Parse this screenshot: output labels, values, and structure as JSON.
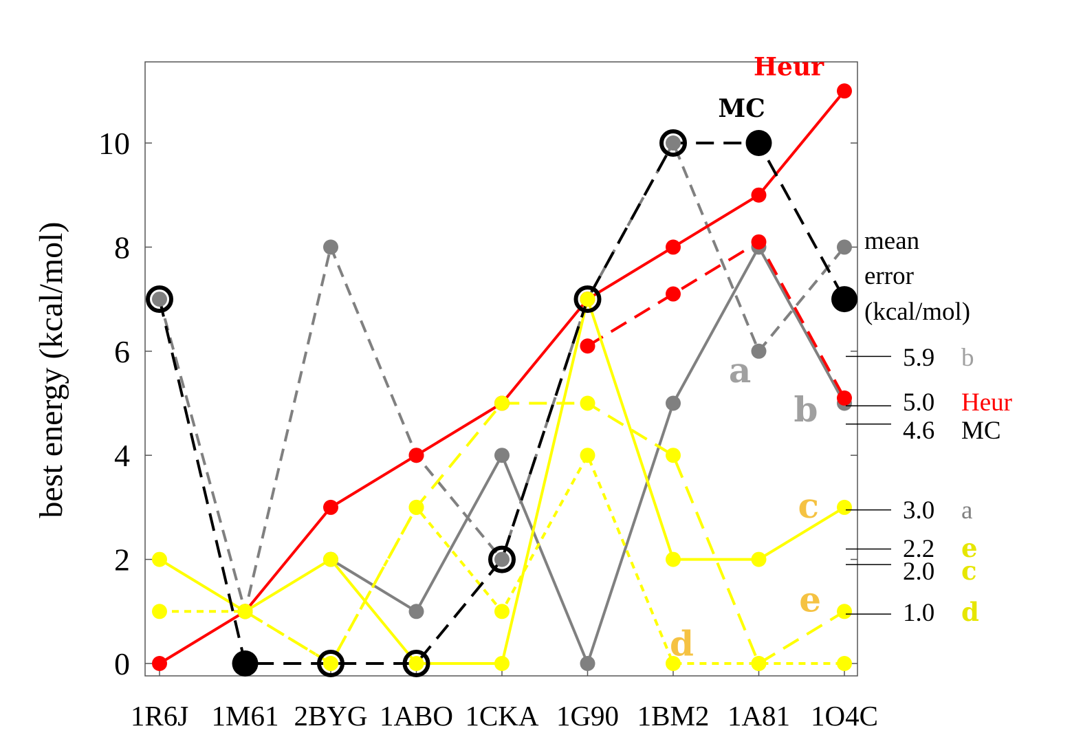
{
  "chart_data": {
    "type": "line",
    "ylabel": "best energy (kcal/mol)",
    "xlabel": "",
    "categories": [
      "1R6J",
      "1M61",
      "2BYG",
      "1ABO",
      "1CKA",
      "1G90",
      "1BM2",
      "1A81",
      "1O4C"
    ],
    "ylim": [
      -0.3,
      11.6
    ],
    "yticks": [
      0,
      2,
      4,
      6,
      8,
      10
    ],
    "grid": false,
    "series": [
      {
        "name": "Heur",
        "key": "heur",
        "color": "#ff0000",
        "dash": "solid",
        "values": [
          0,
          1,
          3,
          4,
          5,
          7,
          8,
          9,
          11
        ]
      },
      {
        "name": "",
        "key": "heur-dashed",
        "color": "#ff0000",
        "dash": "long",
        "values": [
          null,
          null,
          null,
          null,
          null,
          6.1,
          7.1,
          8.1,
          5.1
        ]
      },
      {
        "name": "a",
        "key": "a",
        "color": "#808080",
        "dash": "solid",
        "values": [
          null,
          null,
          2,
          1,
          4,
          0,
          5,
          8,
          5
        ]
      },
      {
        "name": "b",
        "key": "b",
        "color": "#808080",
        "dash": "medium",
        "values": [
          7,
          1,
          8,
          4,
          2,
          7,
          10,
          6,
          8
        ]
      },
      {
        "name": "c",
        "key": "c",
        "color": "#ffff00",
        "dash": "solid",
        "values": [
          2,
          1,
          2,
          0,
          0,
          7,
          2,
          2,
          3
        ]
      },
      {
        "name": "d",
        "key": "d",
        "color": "#ffff00",
        "dash": "short",
        "values": [
          1,
          1,
          0,
          3,
          1,
          4,
          0,
          0,
          0
        ]
      },
      {
        "name": "e",
        "key": "e",
        "color": "#ffff00",
        "dash": "long",
        "values": [
          null,
          1,
          0,
          3,
          5,
          5,
          4,
          0,
          1
        ]
      },
      {
        "name": "MC",
        "key": "mc",
        "color": "#000000",
        "dash": "long",
        "values": [
          7,
          0,
          0,
          0,
          2,
          7,
          10,
          10,
          7
        ]
      }
    ],
    "mc_hollow_points": [
      0,
      2,
      3,
      4,
      5,
      6
    ],
    "mean_error": {
      "title_lines": [
        "mean",
        "error",
        "(kcal/mol)"
      ],
      "entries": [
        {
          "value": "5.9",
          "label": "b",
          "color": "#a0a0a0",
          "y": 5.9
        },
        {
          "value": "5.0",
          "label": "Heur",
          "color": "#ff0000",
          "y": 4.95
        },
        {
          "value": "4.6",
          "label": "MC",
          "color": "#000000",
          "y": 4.6
        },
        {
          "value": "3.0",
          "label": "a",
          "color": "#808080",
          "y": 2.95
        },
        {
          "value": "2.2",
          "label": "e",
          "color": "#e6e600",
          "y": 2.2
        },
        {
          "value": "2.0",
          "label": "c",
          "color": "#e6e600",
          "y": 1.9
        },
        {
          "value": "1.0",
          "label": "d",
          "color": "#e6e600",
          "y": 0.95
        }
      ]
    },
    "annotations": [
      {
        "text": "Heur",
        "color": "#ff0000",
        "x": 7.35,
        "y": 11.3
      },
      {
        "text": "MC",
        "color": "#000000",
        "x": 6.8,
        "y": 10.5
      },
      {
        "text": "a",
        "color": "#a0a0a0",
        "x": 6.78,
        "y": 5.4
      },
      {
        "text": "b",
        "color": "#a0a0a0",
        "x": 7.55,
        "y": 4.65
      },
      {
        "text": "c",
        "color": "#f5c242",
        "x": 7.58,
        "y": 2.8
      },
      {
        "text": "e",
        "color": "#f5c242",
        "x": 7.6,
        "y": 1.0
      },
      {
        "text": "d",
        "color": "#f5c242",
        "x": 6.1,
        "y": 0.15
      }
    ]
  }
}
